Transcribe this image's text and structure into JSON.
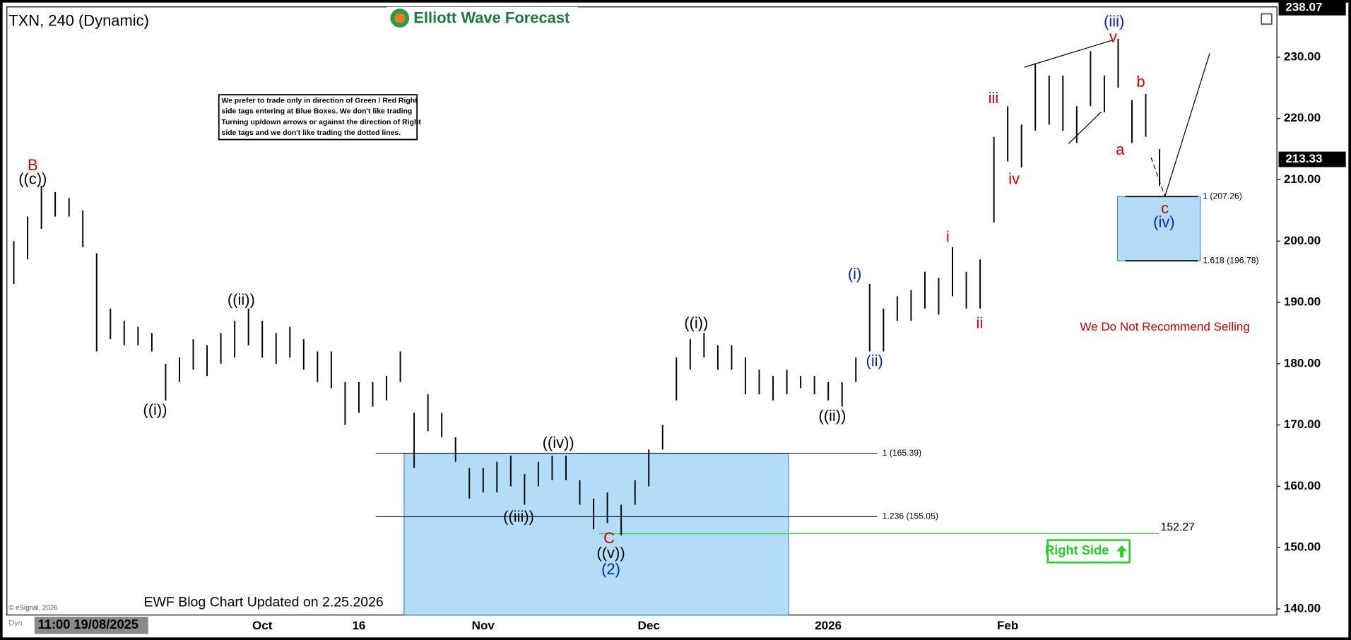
{
  "chart_data": {
    "type": "range-bar",
    "title": "TXN, 240 (Dynamic)",
    "brand": "Elliott Wave Forecast",
    "note": [
      "We prefer to trade only in direction of Green / Red Right",
      "side tags entering at Blue Boxes. We don't like trading",
      "Turning up/down arrows or against the direction of Right",
      "side tags and we don't like trading the dotted lines."
    ],
    "warning": "We Do Not Recommend Selling",
    "tag": "Right Side",
    "footer": "EWF Blog Chart Updated on 2.25.2026",
    "copyright": "© eSignal, 2026",
    "mode": "Dyn",
    "start_time": "11:00 19/08/2025",
    "color": "#000000",
    "categories": [
      null,
      null,
      null,
      null,
      null,
      null,
      null,
      null,
      null,
      null,
      null,
      null,
      null,
      null,
      null,
      null,
      null,
      null,
      "Oct",
      null,
      null,
      null,
      null,
      null,
      null,
      "16",
      null,
      null,
      null,
      null,
      null,
      null,
      null,
      null,
      "Nov",
      null,
      null,
      null,
      null,
      null,
      null,
      null,
      null,
      null,
      null,
      null,
      "Dec",
      null,
      null,
      null,
      null,
      null,
      null,
      null,
      null,
      null,
      null,
      null,
      null,
      "2026",
      null,
      null,
      null,
      null,
      null,
      null,
      null,
      null,
      null,
      null,
      null,
      null,
      "Feb",
      null,
      null,
      null,
      null,
      null,
      null,
      null,
      null,
      null,
      null,
      null,
      null,
      null,
      null,
      null,
      null,
      null,
      null,
      null
    ],
    "high": [
      200,
      204,
      209,
      208,
      207,
      205,
      198,
      189,
      187,
      186,
      185,
      180,
      181,
      184,
      183,
      185,
      187,
      189,
      187,
      185,
      186,
      184,
      182,
      182,
      177,
      177,
      177,
      178,
      182,
      172,
      175,
      172,
      168,
      163,
      163,
      164,
      165,
      162,
      164,
      165,
      165,
      161,
      158,
      159,
      157,
      161,
      166,
      170,
      181,
      184,
      185,
      183,
      183,
      181,
      179,
      178,
      179,
      178,
      178,
      177,
      177,
      181,
      193,
      189,
      191,
      192,
      195,
      194,
      199,
      195,
      197,
      217,
      222,
      219,
      229,
      227,
      227,
      222,
      231,
      227,
      233,
      223,
      224,
      215,
      null,
      null,
      null,
      null,
      null,
      null,
      null,
      null
    ],
    "low": [
      193,
      197,
      202,
      204,
      204,
      199,
      182,
      184,
      183,
      183,
      182,
      174,
      177,
      179,
      178,
      180,
      181,
      183,
      181,
      180,
      181,
      179,
      177,
      176,
      170,
      172,
      173,
      174,
      177,
      163,
      169,
      168,
      164,
      158,
      159,
      159,
      160,
      157,
      160,
      161,
      161,
      157,
      153,
      154,
      152,
      157,
      160,
      166,
      174,
      179,
      181,
      179,
      179,
      175,
      175,
      174,
      175,
      176,
      175,
      174,
      173,
      177,
      182,
      182,
      187,
      187,
      189,
      188,
      191,
      189,
      189,
      203,
      213,
      212,
      218,
      219,
      218,
      216,
      222,
      221,
      225,
      216,
      217,
      209,
      null,
      null,
      null,
      null,
      null,
      null,
      null,
      null
    ],
    "ylim": [
      139,
      238.2
    ],
    "yticks": [
      {
        "value": 140,
        "label": "140.00"
      },
      {
        "value": 150,
        "label": "150.00"
      },
      {
        "value": 160,
        "label": "160.00"
      },
      {
        "value": 170,
        "label": "170.00"
      },
      {
        "value": 180,
        "label": "180.00"
      },
      {
        "value": 190,
        "label": "190.00"
      },
      {
        "value": 200,
        "label": "200.00"
      },
      {
        "value": 210,
        "label": "210.00"
      },
      {
        "value": 220,
        "label": "220.00"
      },
      {
        "value": 230,
        "label": "230.00"
      }
    ],
    "axis_top_price": 238.07,
    "last_price": 213.33,
    "invalidation_level": 152.27,
    "fib_levels": [
      {
        "value": 165.39,
        "label": "1 (165.39)"
      },
      {
        "value": 155.05,
        "label": "1.236 (155.05)"
      },
      {
        "value": 207.26,
        "label": "1 (207.26)"
      },
      {
        "value": 196.78,
        "label": "1.618 (196.78)"
      }
    ],
    "wave_labels": [
      {
        "text": "B",
        "color": "#d00000"
      },
      {
        "text": "((c))",
        "color": "#000000"
      },
      {
        "text": "((i))",
        "color": "#000000"
      },
      {
        "text": "((ii))",
        "color": "#000000"
      },
      {
        "text": "((iii))",
        "color": "#000000"
      },
      {
        "text": "((iv))",
        "color": "#000000"
      },
      {
        "text": "C",
        "color": "#d00000"
      },
      {
        "text": "((v))",
        "color": "#000000"
      },
      {
        "text": "(2)",
        "color": "#0026b3"
      },
      {
        "text": "((i))",
        "color": "#000000"
      },
      {
        "text": "((ii))",
        "color": "#000000"
      },
      {
        "text": "(i)",
        "color": "#0026b3"
      },
      {
        "text": "(ii)",
        "color": "#0026b3"
      },
      {
        "text": "i",
        "color": "#d00000"
      },
      {
        "text": "ii",
        "color": "#d00000"
      },
      {
        "text": "iii",
        "color": "#d00000"
      },
      {
        "text": "iv",
        "color": "#d00000"
      },
      {
        "text": "v",
        "color": "#d00000"
      },
      {
        "text": "(iii)",
        "color": "#0026b3"
      },
      {
        "text": "a",
        "color": "#d00000"
      },
      {
        "text": "b",
        "color": "#d00000"
      },
      {
        "text": "c",
        "color": "#d00000"
      },
      {
        "text": "(iv)",
        "color": "#0026b3"
      }
    ]
  }
}
